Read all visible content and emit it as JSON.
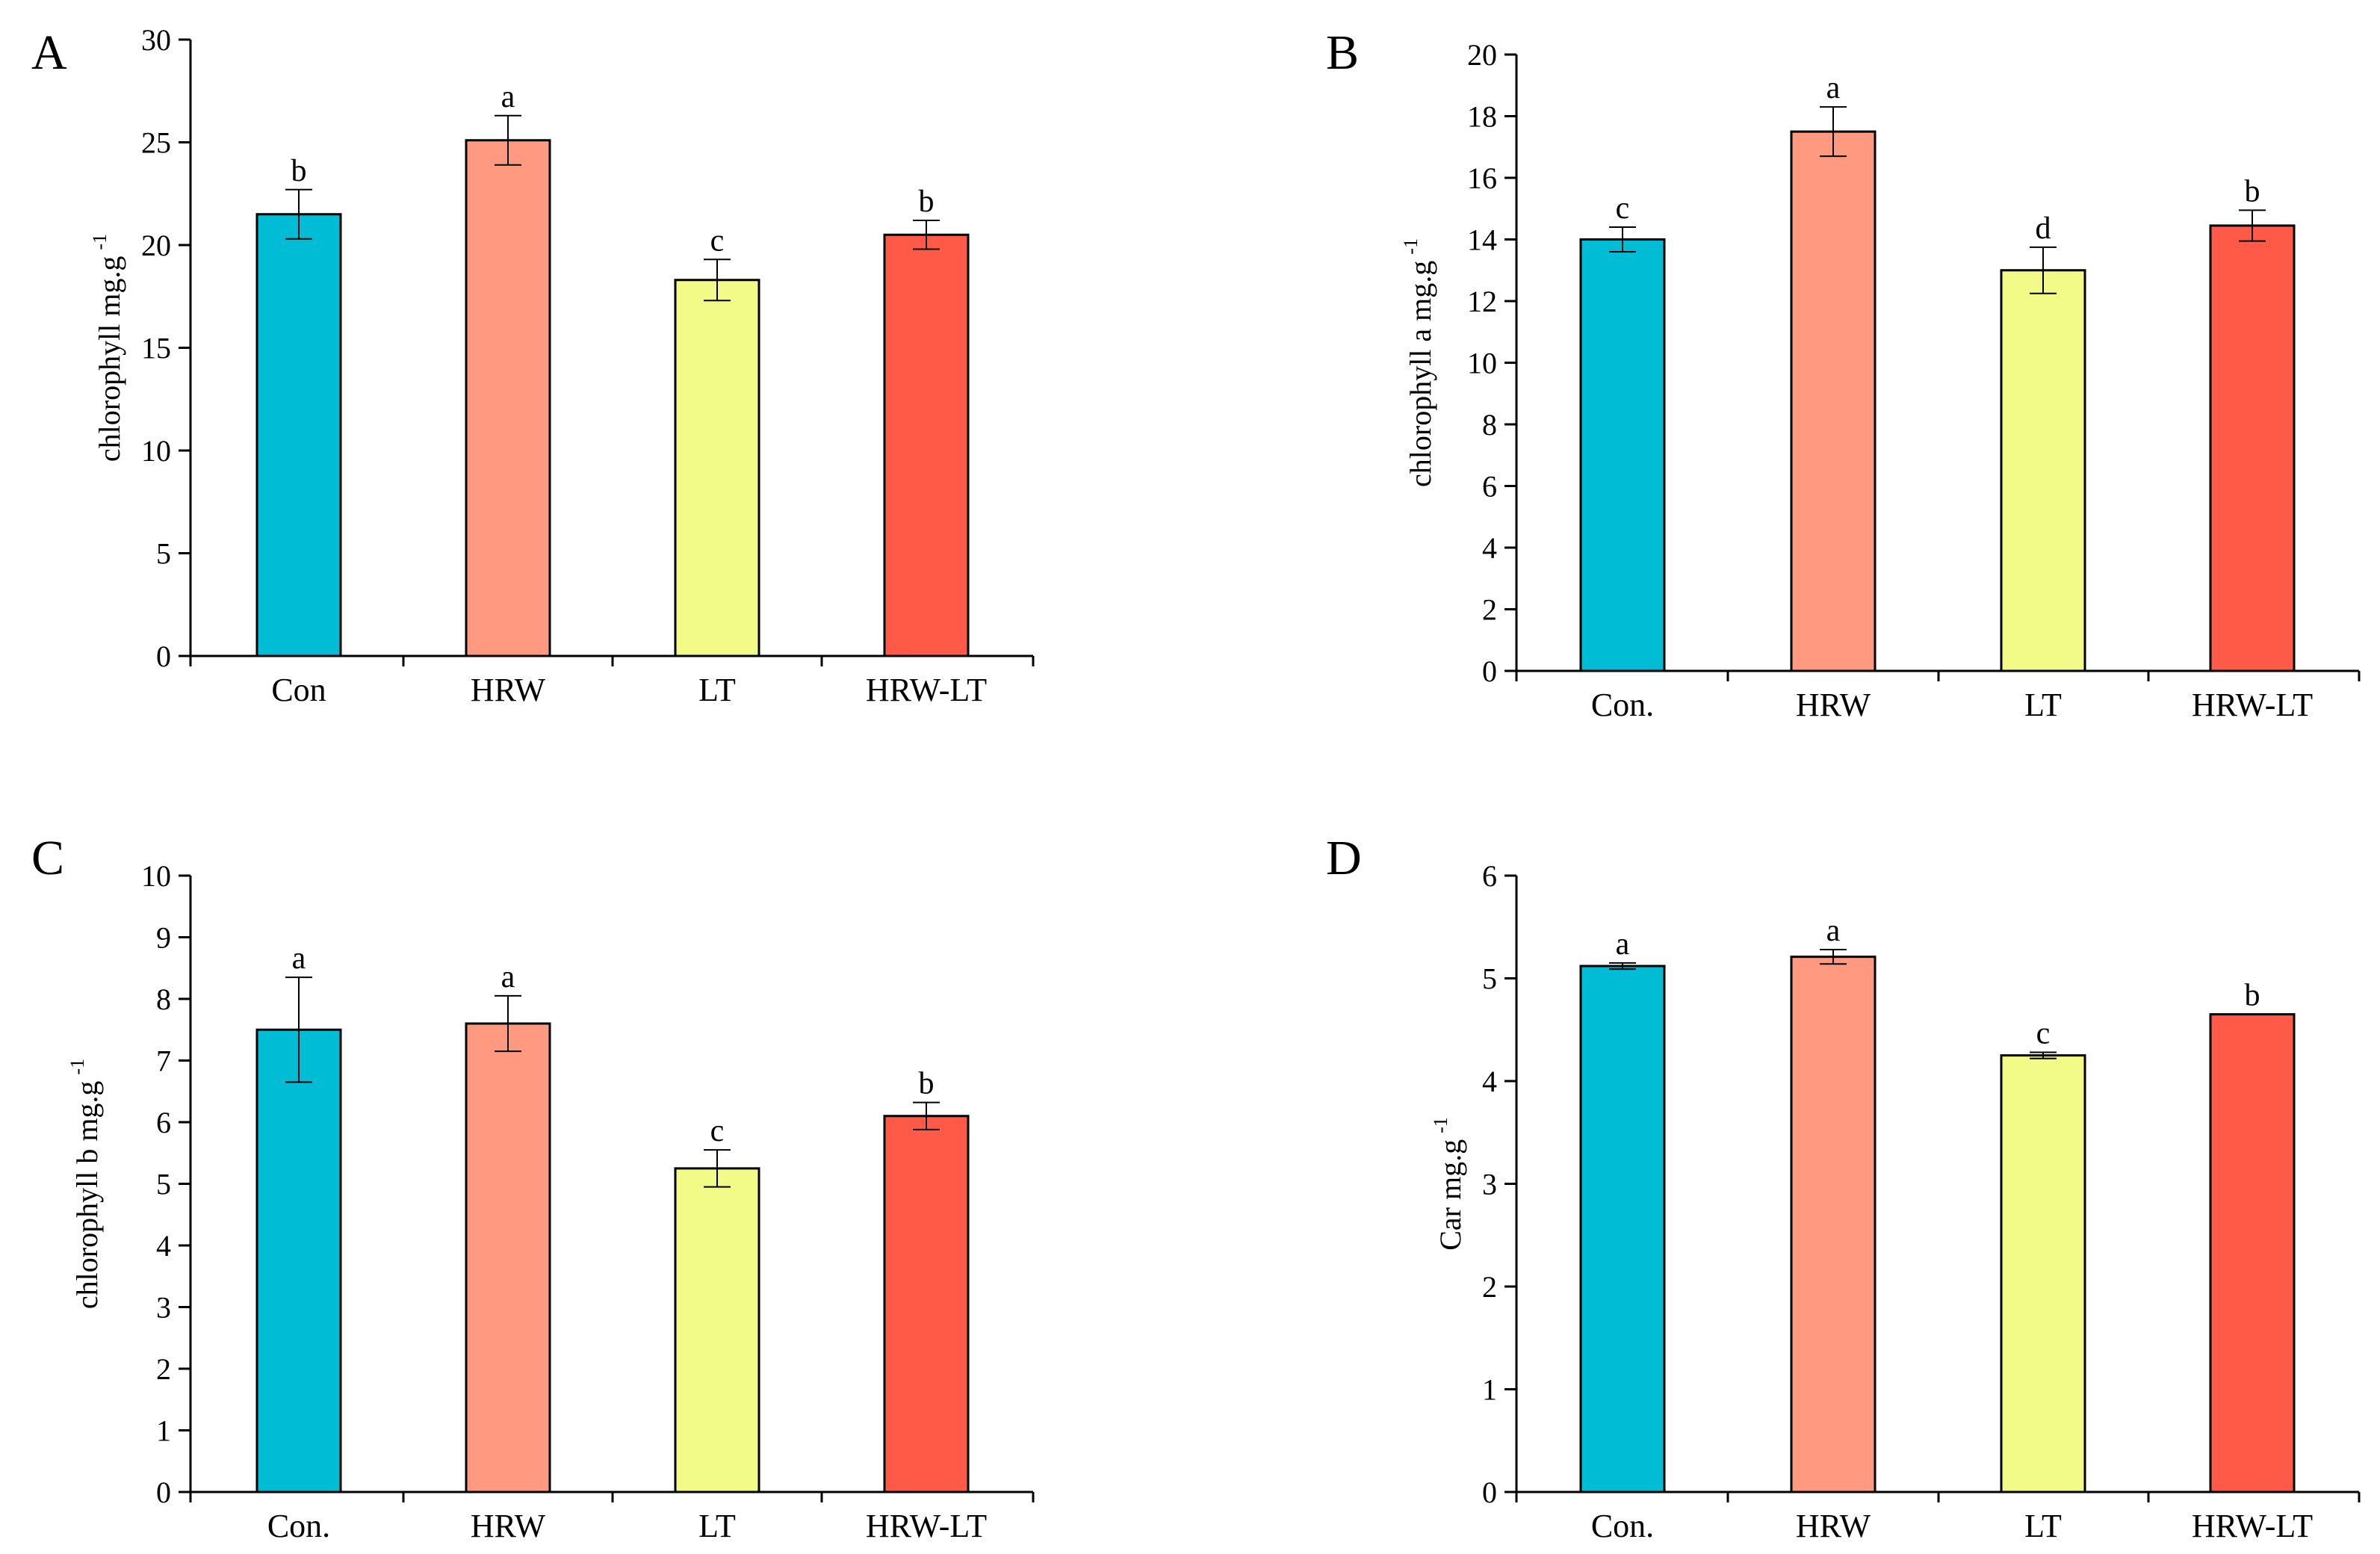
{
  "colors": {
    "Con": "#00BCD4",
    "HRW": "#FF9A80",
    "LT": "#F2FA88",
    "HRW-LT": "#FF5A48"
  },
  "chart_data": [
    {
      "type": "bar",
      "panel": "A",
      "ylabel": "chlorophyll mg.g",
      "ylabel_sup": "-1",
      "ylim": [
        0,
        30
      ],
      "yticks": [
        "0",
        "5",
        "10",
        "15",
        "20",
        "25",
        "30"
      ],
      "ytick_values": [
        0,
        5,
        10,
        15,
        20,
        25,
        30
      ],
      "categories": [
        "Con",
        "HRW",
        "LT",
        "HRW-LT"
      ],
      "series_keys": [
        "Con",
        "HRW",
        "LT",
        "HRW-LT"
      ],
      "values": [
        21.5,
        25.1,
        18.3,
        20.5
      ],
      "errors": [
        1.2,
        1.2,
        1.0,
        0.7
      ],
      "significance": [
        "b",
        "a",
        "c",
        "b"
      ]
    },
    {
      "type": "bar",
      "panel": "B",
      "ylabel": "chlorophyll a mg.g",
      "ylabel_sup": "-1",
      "ylim": [
        0,
        20
      ],
      "yticks": [
        "0",
        "2",
        "4",
        "6",
        "8",
        "10",
        "12",
        "14",
        "16",
        "18",
        "20"
      ],
      "ytick_values": [
        0,
        2,
        4,
        6,
        8,
        10,
        12,
        14,
        16,
        18,
        20
      ],
      "categories": [
        "Con.",
        "HRW",
        "LT",
        "HRW-LT"
      ],
      "series_keys": [
        "Con",
        "HRW",
        "LT",
        "HRW-LT"
      ],
      "values": [
        14.0,
        17.5,
        13.0,
        14.45
      ],
      "errors": [
        0.4,
        0.8,
        0.75,
        0.5
      ],
      "significance": [
        "c",
        "a",
        "d",
        "b"
      ]
    },
    {
      "type": "bar",
      "panel": "C",
      "ylabel": "chlorophyll b mg.g",
      "ylabel_sup": "-1",
      "ylim": [
        0,
        10
      ],
      "yticks": [
        "0",
        "1",
        "2",
        "3",
        "4",
        "5",
        "6",
        "7",
        "8",
        "9",
        "10"
      ],
      "ytick_values": [
        0,
        1,
        2,
        3,
        4,
        5,
        6,
        7,
        8,
        9,
        10
      ],
      "categories": [
        "Con.",
        "HRW",
        "LT",
        "HRW-LT"
      ],
      "series_keys": [
        "Con",
        "HRW",
        "LT",
        "HRW-LT"
      ],
      "values": [
        7.5,
        7.6,
        5.25,
        6.1
      ],
      "errors": [
        0.85,
        0.45,
        0.3,
        0.22
      ],
      "significance": [
        "a",
        "a",
        "c",
        "b"
      ]
    },
    {
      "type": "bar",
      "panel": "D",
      "ylabel": "Car mg.g",
      "ylabel_sup": "-1",
      "ylim": [
        0,
        6
      ],
      "yticks": [
        "0",
        "1",
        "2",
        "3",
        "4",
        "5",
        "6"
      ],
      "ytick_values": [
        0,
        1,
        2,
        3,
        4,
        5,
        6
      ],
      "categories": [
        "Con.",
        "HRW",
        "LT",
        "HRW-LT"
      ],
      "series_keys": [
        "Con",
        "HRW",
        "LT",
        "HRW-LT"
      ],
      "values": [
        5.12,
        5.21,
        4.25,
        4.65
      ],
      "errors": [
        0.03,
        0.07,
        0.03,
        0.0
      ],
      "significance": [
        "a",
        "a",
        "c",
        "b"
      ]
    }
  ]
}
